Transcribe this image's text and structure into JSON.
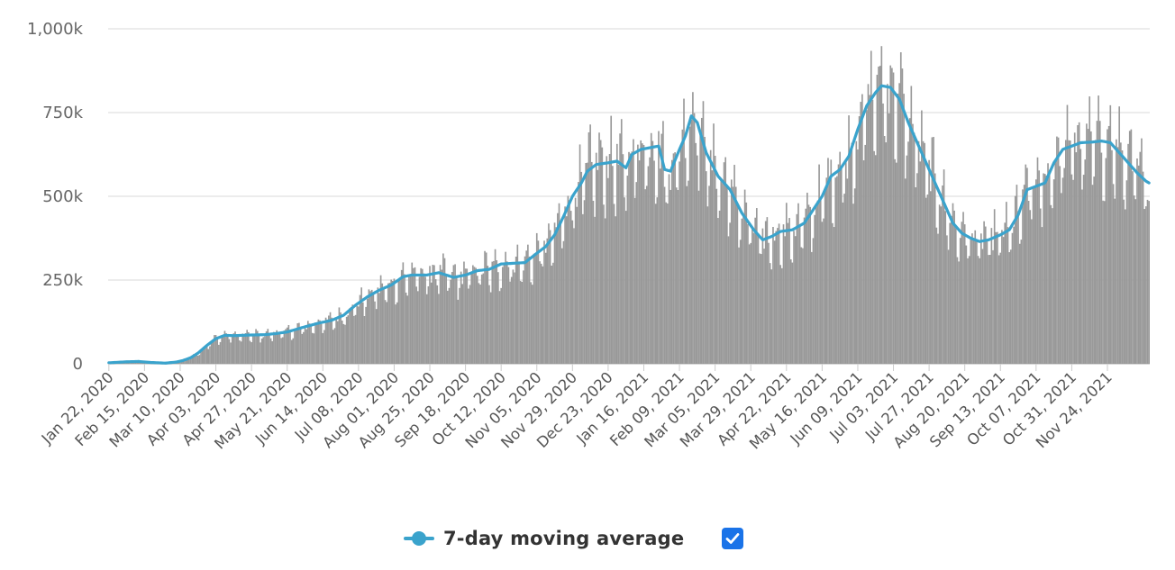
{
  "chart_data": {
    "type": "bar",
    "title": "",
    "xlabel": "",
    "ylabel": "",
    "ylim": [
      0,
      1000000
    ],
    "y_ticks": [
      {
        "value": 0,
        "label": "0"
      },
      {
        "value": 250000,
        "label": "250k"
      },
      {
        "value": 500000,
        "label": "500k"
      },
      {
        "value": 750000,
        "label": "750k"
      },
      {
        "value": 1000000,
        "label": "1,000k"
      }
    ],
    "x_start_date": "Jan 22, 2020",
    "x_num_days": 701,
    "x_ticks": [
      {
        "day": 0,
        "label": "Jan 22, 2020"
      },
      {
        "day": 24,
        "label": "Feb 15, 2020"
      },
      {
        "day": 48,
        "label": "Mar 10, 2020"
      },
      {
        "day": 72,
        "label": "Apr 03, 2020"
      },
      {
        "day": 96,
        "label": "Apr 27, 2020"
      },
      {
        "day": 120,
        "label": "May 21, 2020"
      },
      {
        "day": 144,
        "label": "Jun 14, 2020"
      },
      {
        "day": 168,
        "label": "Jul 08, 2020"
      },
      {
        "day": 192,
        "label": "Aug 01, 2020"
      },
      {
        "day": 216,
        "label": "Aug 25, 2020"
      },
      {
        "day": 240,
        "label": "Sep 18, 2020"
      },
      {
        "day": 264,
        "label": "Oct 12, 2020"
      },
      {
        "day": 288,
        "label": "Nov 05, 2020"
      },
      {
        "day": 312,
        "label": "Nov 29, 2020"
      },
      {
        "day": 336,
        "label": "Dec 23, 2020"
      },
      {
        "day": 360,
        "label": "Jan 16, 2021"
      },
      {
        "day": 384,
        "label": "Feb 09, 2021"
      },
      {
        "day": 408,
        "label": "Mar 05, 2021"
      },
      {
        "day": 432,
        "label": "Mar 29, 2021"
      },
      {
        "day": 456,
        "label": "Apr 22, 2021"
      },
      {
        "day": 480,
        "label": "May 16, 2021"
      },
      {
        "day": 504,
        "label": "Jun 09, 2021"
      },
      {
        "day": 528,
        "label": "Jul 03, 2021"
      },
      {
        "day": 552,
        "label": "Jul 27, 2021"
      },
      {
        "day": 576,
        "label": "Aug 20, 2021"
      },
      {
        "day": 600,
        "label": "Sep 13, 2021"
      },
      {
        "day": 624,
        "label": "Oct 07, 2021"
      },
      {
        "day": 648,
        "label": "Oct 31, 2021"
      },
      {
        "day": 672,
        "label": "Nov 24, 2021"
      }
    ],
    "moving_average_anchors": [
      [
        0,
        3000
      ],
      [
        12,
        6000
      ],
      [
        20,
        7000
      ],
      [
        28,
        4000
      ],
      [
        38,
        2000
      ],
      [
        45,
        5000
      ],
      [
        50,
        10000
      ],
      [
        55,
        18000
      ],
      [
        60,
        32000
      ],
      [
        66,
        55000
      ],
      [
        72,
        75000
      ],
      [
        78,
        85000
      ],
      [
        84,
        84000
      ],
      [
        96,
        86000
      ],
      [
        105,
        87000
      ],
      [
        112,
        90000
      ],
      [
        120,
        95000
      ],
      [
        130,
        108000
      ],
      [
        140,
        120000
      ],
      [
        150,
        130000
      ],
      [
        158,
        145000
      ],
      [
        166,
        175000
      ],
      [
        174,
        200000
      ],
      [
        182,
        220000
      ],
      [
        190,
        235000
      ],
      [
        198,
        260000
      ],
      [
        204,
        265000
      ],
      [
        214,
        265000
      ],
      [
        222,
        272000
      ],
      [
        232,
        258000
      ],
      [
        240,
        265000
      ],
      [
        248,
        278000
      ],
      [
        256,
        282000
      ],
      [
        264,
        298000
      ],
      [
        272,
        300000
      ],
      [
        280,
        302000
      ],
      [
        288,
        330000
      ],
      [
        294,
        350000
      ],
      [
        300,
        385000
      ],
      [
        306,
        440000
      ],
      [
        312,
        500000
      ],
      [
        318,
        540000
      ],
      [
        322,
        575000
      ],
      [
        328,
        595000
      ],
      [
        336,
        600000
      ],
      [
        342,
        605000
      ],
      [
        348,
        585000
      ],
      [
        352,
        625000
      ],
      [
        358,
        640000
      ],
      [
        364,
        645000
      ],
      [
        370,
        650000
      ],
      [
        374,
        580000
      ],
      [
        378,
        575000
      ],
      [
        384,
        640000
      ],
      [
        388,
        680000
      ],
      [
        392,
        740000
      ],
      [
        396,
        720000
      ],
      [
        402,
        630000
      ],
      [
        410,
        560000
      ],
      [
        418,
        520000
      ],
      [
        426,
        450000
      ],
      [
        434,
        400000
      ],
      [
        440,
        370000
      ],
      [
        446,
        380000
      ],
      [
        452,
        395000
      ],
      [
        460,
        400000
      ],
      [
        468,
        420000
      ],
      [
        474,
        460000
      ],
      [
        480,
        500000
      ],
      [
        486,
        560000
      ],
      [
        492,
        580000
      ],
      [
        498,
        620000
      ],
      [
        504,
        700000
      ],
      [
        510,
        770000
      ],
      [
        516,
        810000
      ],
      [
        520,
        830000
      ],
      [
        526,
        825000
      ],
      [
        532,
        790000
      ],
      [
        538,
        720000
      ],
      [
        544,
        660000
      ],
      [
        550,
        600000
      ],
      [
        556,
        540000
      ],
      [
        562,
        480000
      ],
      [
        568,
        420000
      ],
      [
        574,
        390000
      ],
      [
        580,
        375000
      ],
      [
        586,
        365000
      ],
      [
        592,
        370000
      ],
      [
        600,
        385000
      ],
      [
        606,
        400000
      ],
      [
        612,
        445000
      ],
      [
        618,
        520000
      ],
      [
        624,
        530000
      ],
      [
        630,
        540000
      ],
      [
        636,
        600000
      ],
      [
        642,
        640000
      ],
      [
        648,
        650000
      ],
      [
        654,
        660000
      ],
      [
        662,
        662000
      ],
      [
        668,
        665000
      ],
      [
        674,
        660000
      ],
      [
        680,
        630000
      ],
      [
        686,
        600000
      ],
      [
        692,
        570000
      ],
      [
        698,
        545000
      ],
      [
        700,
        540000
      ]
    ]
  },
  "legend": {
    "series_label": "7-day moving average",
    "series_color": "#3aa3cc",
    "bar_color": "#999999",
    "checkbox_color": "#1a73e8"
  }
}
